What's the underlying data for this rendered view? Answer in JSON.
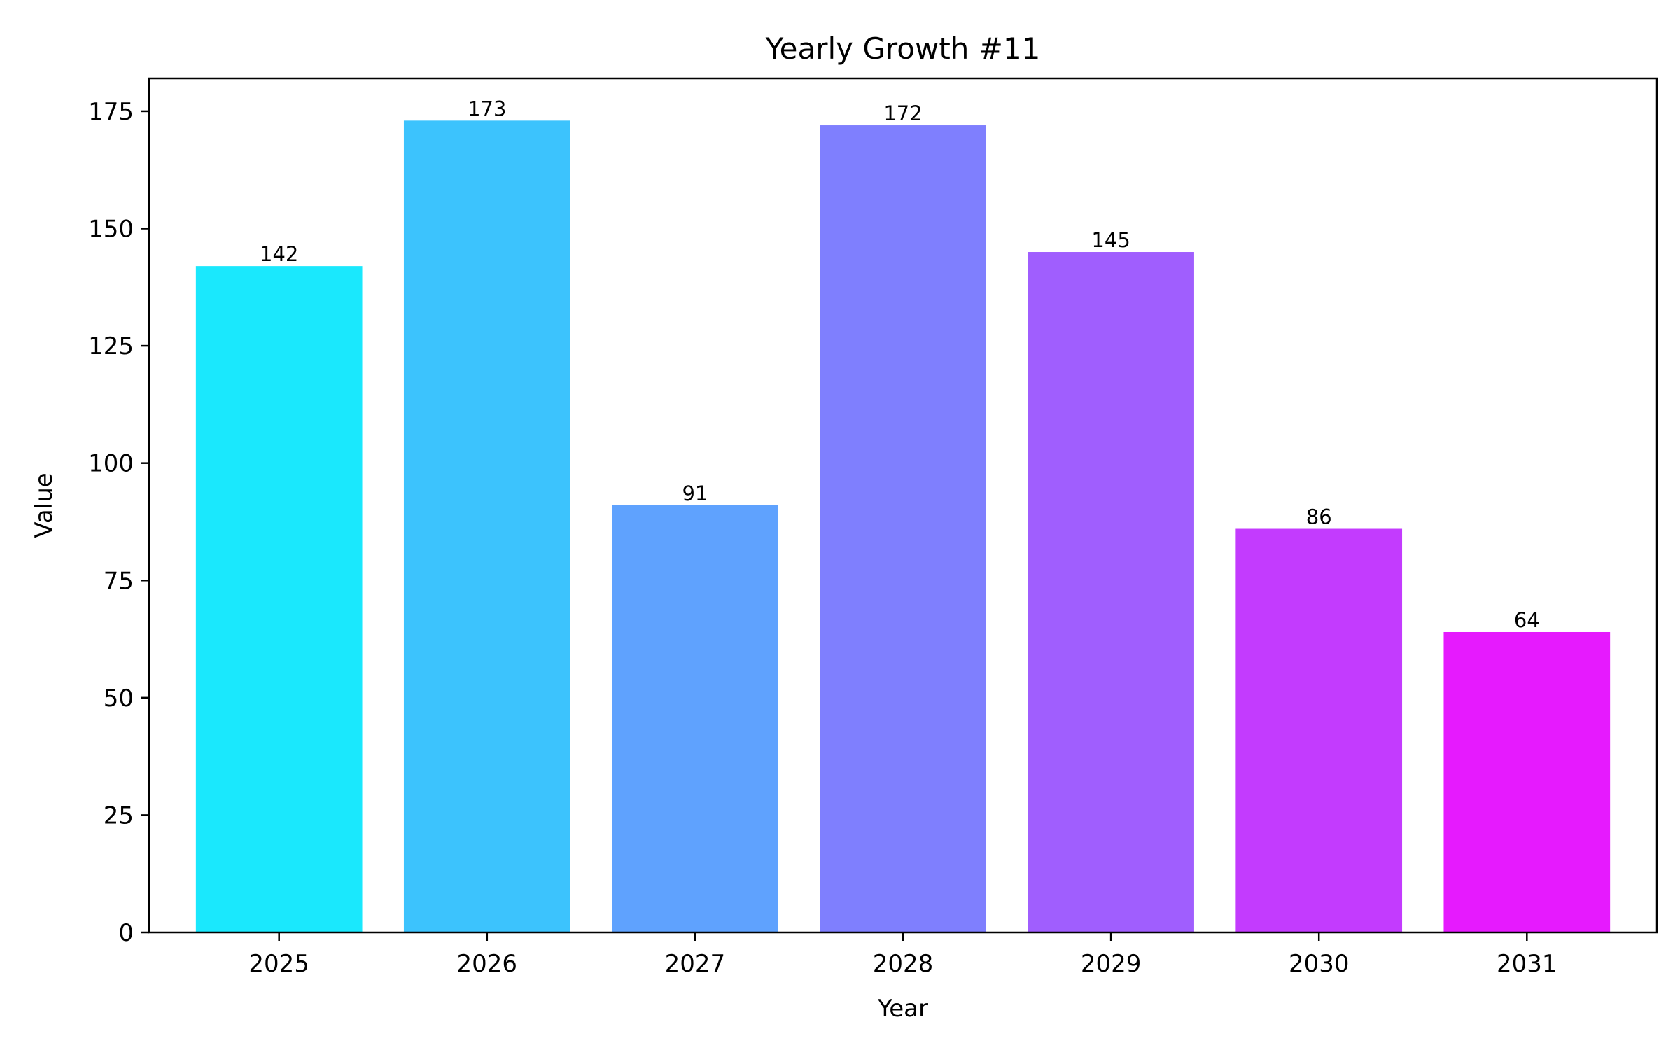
{
  "chart_data": {
    "type": "bar",
    "title": "Yearly Growth #11",
    "xlabel": "Year",
    "ylabel": "Value",
    "categories": [
      "2025",
      "2026",
      "2027",
      "2028",
      "2029",
      "2030",
      "2031"
    ],
    "values": [
      142,
      173,
      91,
      172,
      145,
      86,
      64
    ],
    "colors": [
      "#1ae8fd",
      "#3cc3fd",
      "#5fa2fe",
      "#7f7ffe",
      "#a05efe",
      "#c33bfe",
      "#e61afe"
    ],
    "ylim": [
      0,
      182
    ],
    "yticks": [
      0,
      25,
      50,
      75,
      100,
      125,
      150,
      175
    ],
    "grid": false,
    "legend": "none",
    "data_labels": true
  }
}
